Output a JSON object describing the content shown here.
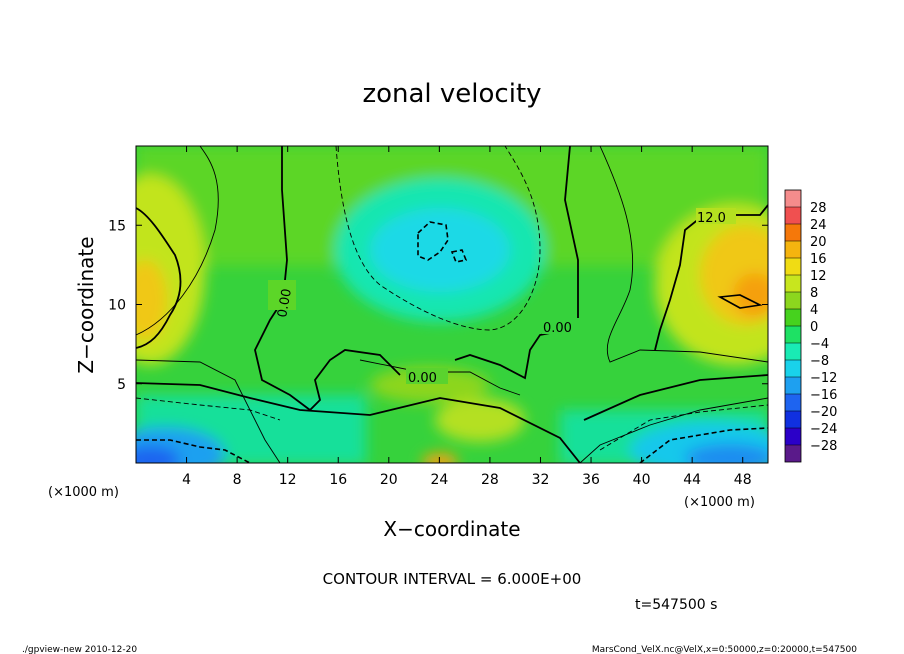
{
  "chart_data": {
    "type": "heatmap",
    "title": "zonal velocity",
    "xlabel": "X−coordinate",
    "ylabel": "Z−coordinate",
    "x_unit": "(×1000 m)",
    "y_unit": "(×1000 m)",
    "xlim": [
      0,
      50
    ],
    "ylim": [
      0,
      20
    ],
    "x_ticks": [
      "4",
      "8",
      "12",
      "16",
      "20",
      "24",
      "28",
      "32",
      "36",
      "40",
      "44",
      "48"
    ],
    "y_ticks": [
      "5",
      "10",
      "15"
    ],
    "colorbar": {
      "levels": [
        -30,
        -28,
        -24,
        -20,
        -16,
        -12,
        -8,
        -4,
        0,
        4,
        8,
        12,
        16,
        20,
        24,
        28,
        30
      ],
      "labels": [
        "28",
        "24",
        "20",
        "16",
        "12",
        "8",
        "4",
        "0",
        "−4",
        "−8",
        "−12",
        "−16",
        "−20",
        "−24",
        "−28"
      ],
      "colors": [
        "#5a1a8a",
        "#2b00c8",
        "#1030e0",
        "#1e64f0",
        "#1ea0f0",
        "#19d2eb",
        "#19ebb4",
        "#1ee164",
        "#46d21e",
        "#8cd61e",
        "#c8e61e",
        "#f0dc14",
        "#f5b40f",
        "#f5780a",
        "#f05050",
        "#f58c8c"
      ]
    },
    "contour_labels": [
      "0.00",
      "0.00",
      "0.00",
      "12.0"
    ],
    "contour_interval": "CONTOUR INTERVAL = 6.000E+00",
    "time": "t=547500 s",
    "grid": false,
    "legend": "colorbar right"
  },
  "footer": {
    "left": "./gpview-new  2010-12-20",
    "right": "MarsCond_VelX.nc@VelX,x=0:50000,z=0:20000,t=547500"
  }
}
